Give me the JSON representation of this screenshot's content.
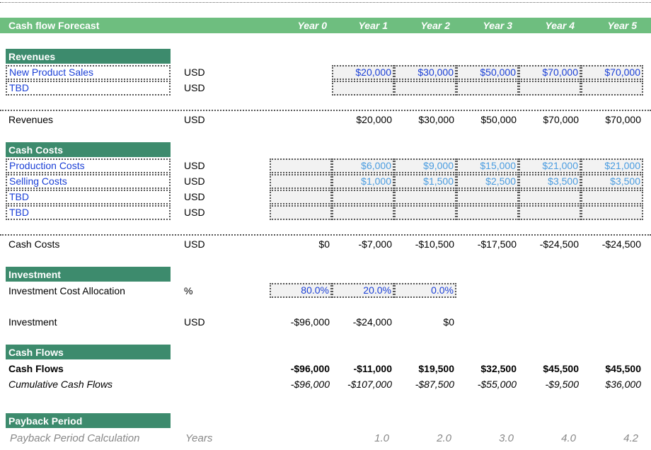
{
  "header": {
    "title": "Cash flow Forecast",
    "years": [
      "Year 0",
      "Year 1",
      "Year 2",
      "Year 3",
      "Year 4",
      "Year 5"
    ]
  },
  "revenues": {
    "section_title": "Revenues",
    "inputs": [
      {
        "label": "New Product Sales",
        "unit": "USD",
        "values": [
          "$20,000",
          "$30,000",
          "$50,000",
          "$70,000",
          "$70,000"
        ]
      },
      {
        "label": "TBD",
        "unit": "USD",
        "values": [
          "",
          "",
          "",
          "",
          ""
        ]
      }
    ],
    "total": {
      "label": "Revenues",
      "unit": "USD",
      "values": [
        "$20,000",
        "$30,000",
        "$50,000",
        "$70,000",
        "$70,000"
      ]
    }
  },
  "cash_costs": {
    "section_title": "Cash Costs",
    "inputs": [
      {
        "label": "Production Costs",
        "unit": "USD",
        "values": [
          "",
          "$6,000",
          "$9,000",
          "$15,000",
          "$21,000",
          "$21,000"
        ]
      },
      {
        "label": "Selling Costs",
        "unit": "USD",
        "values": [
          "",
          "$1,000",
          "$1,500",
          "$2,500",
          "$3,500",
          "$3,500"
        ]
      },
      {
        "label": "TBD",
        "unit": "USD",
        "values": [
          "",
          "",
          "",
          "",
          "",
          ""
        ]
      },
      {
        "label": "TBD",
        "unit": "USD",
        "values": [
          "",
          "",
          "",
          "",
          "",
          ""
        ]
      }
    ],
    "total": {
      "label": "Cash Costs",
      "unit": "USD",
      "values": [
        "$0",
        "-$7,000",
        "-$10,500",
        "-$17,500",
        "-$24,500",
        "-$24,500"
      ]
    }
  },
  "investment": {
    "section_title": "Investment",
    "allocation": {
      "label": "Investment Cost Allocation",
      "unit": "%",
      "values": [
        "80.0%",
        "20.0%",
        "0.0%"
      ]
    },
    "total": {
      "label": "Investment",
      "unit": "USD",
      "values": [
        "-$96,000",
        "-$24,000",
        "$0"
      ]
    }
  },
  "cash_flows": {
    "section_title": "Cash Flows",
    "flows": {
      "label": "Cash Flows",
      "values": [
        "-$96,000",
        "-$11,000",
        "$19,500",
        "$32,500",
        "$45,500",
        "$45,500"
      ]
    },
    "cumulative": {
      "label": "Cumulative Cash Flows",
      "values": [
        "-$96,000",
        "-$107,000",
        "-$87,500",
        "-$55,000",
        "-$9,500",
        "$36,000"
      ]
    }
  },
  "payback": {
    "section_title": "Payback Period",
    "calc": {
      "label": "Payback Period Calculation",
      "unit": "Years",
      "values": [
        "1.0",
        "2.0",
        "3.0",
        "4.0",
        "4.2"
      ]
    }
  },
  "colors": {
    "header_green": "#6ebe7f",
    "section_green": "#3d8b6d",
    "input_blue": "#1a3fd6",
    "light_blue": "#4a9ce0"
  }
}
